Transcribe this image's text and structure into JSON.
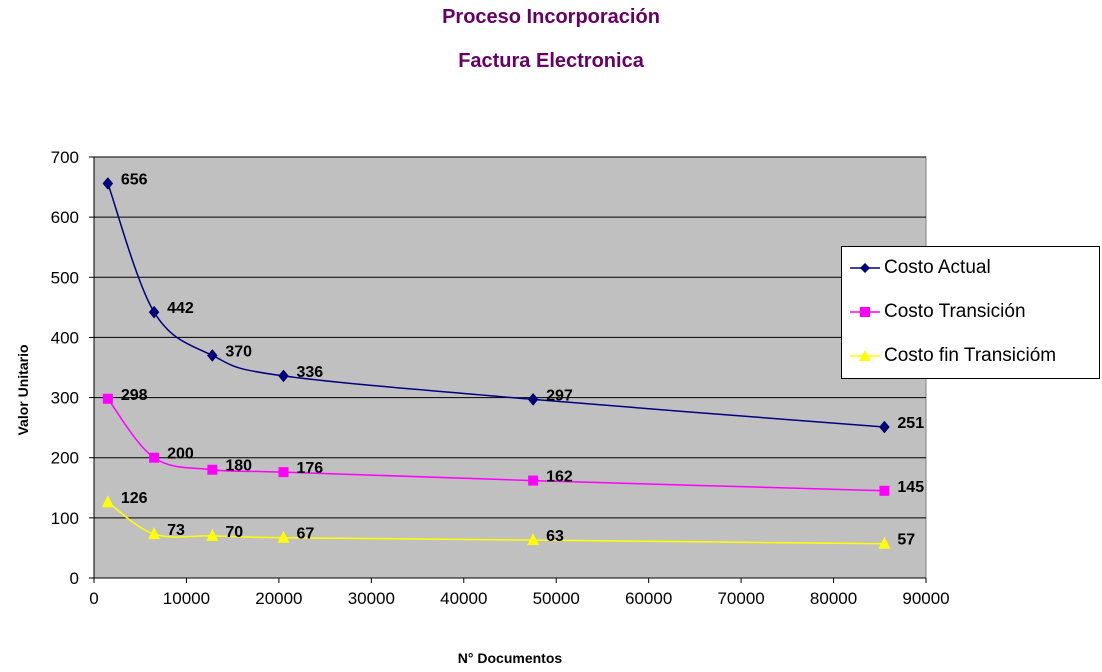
{
  "chart_data": {
    "type": "line",
    "title": "Proceso Incorporación",
    "subtitle": "Factura Electronica",
    "xlabel": "N° Documentos",
    "ylabel": "Valor Unitario",
    "xlim": [
      0,
      90000
    ],
    "ylim": [
      0,
      700
    ],
    "xticks": [
      0,
      10000,
      20000,
      30000,
      40000,
      50000,
      60000,
      70000,
      80000,
      90000
    ],
    "yticks": [
      0,
      100,
      200,
      300,
      400,
      500,
      600,
      700
    ],
    "grid": "horizontal",
    "legend_position": "right",
    "x": [
      1500,
      6500,
      12800,
      20500,
      47500,
      85500
    ],
    "series": [
      {
        "name": "Costo Actual",
        "color": "#000080",
        "marker": "diamond",
        "values": [
          656,
          442,
          370,
          336,
          297,
          251
        ]
      },
      {
        "name": "Costo Transición",
        "color": "#ff00ff",
        "marker": "square",
        "values": [
          298,
          200,
          180,
          176,
          162,
          145
        ]
      },
      {
        "name": "Costo fin Transicióm",
        "color": "#ffff00",
        "marker": "triangle",
        "values": [
          126,
          73,
          70,
          67,
          63,
          57
        ]
      }
    ]
  }
}
